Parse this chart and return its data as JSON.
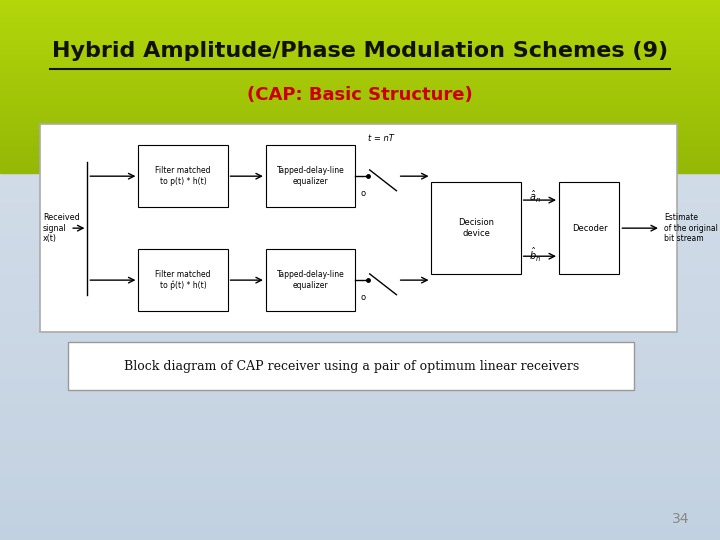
{
  "title": "Hybrid Amplitude/Phase Modulation Schemes (9)",
  "subtitle": "(CAP: Basic Structure)",
  "page_number": "34",
  "diagram_caption": "Block diagram of CAP receiver using a pair of optimum linear receivers",
  "upper_filter_label": "Filter matched\nto p(t) * h(t)",
  "upper_eq_label": "Tapped-delay-line\nequalizer",
  "lower_filter_label": "Filter matched\nto p̂(t) * h(t)",
  "lower_eq_label": "Tapped-delay-line\nequalizer",
  "decision_label": "Decision\ndevice",
  "decoder_label": "Decoder",
  "output_label": "Estimate\nof the original\nbit stream",
  "received_label": "Received\nsignal\nx(t)",
  "sampling_label": "t = nT"
}
